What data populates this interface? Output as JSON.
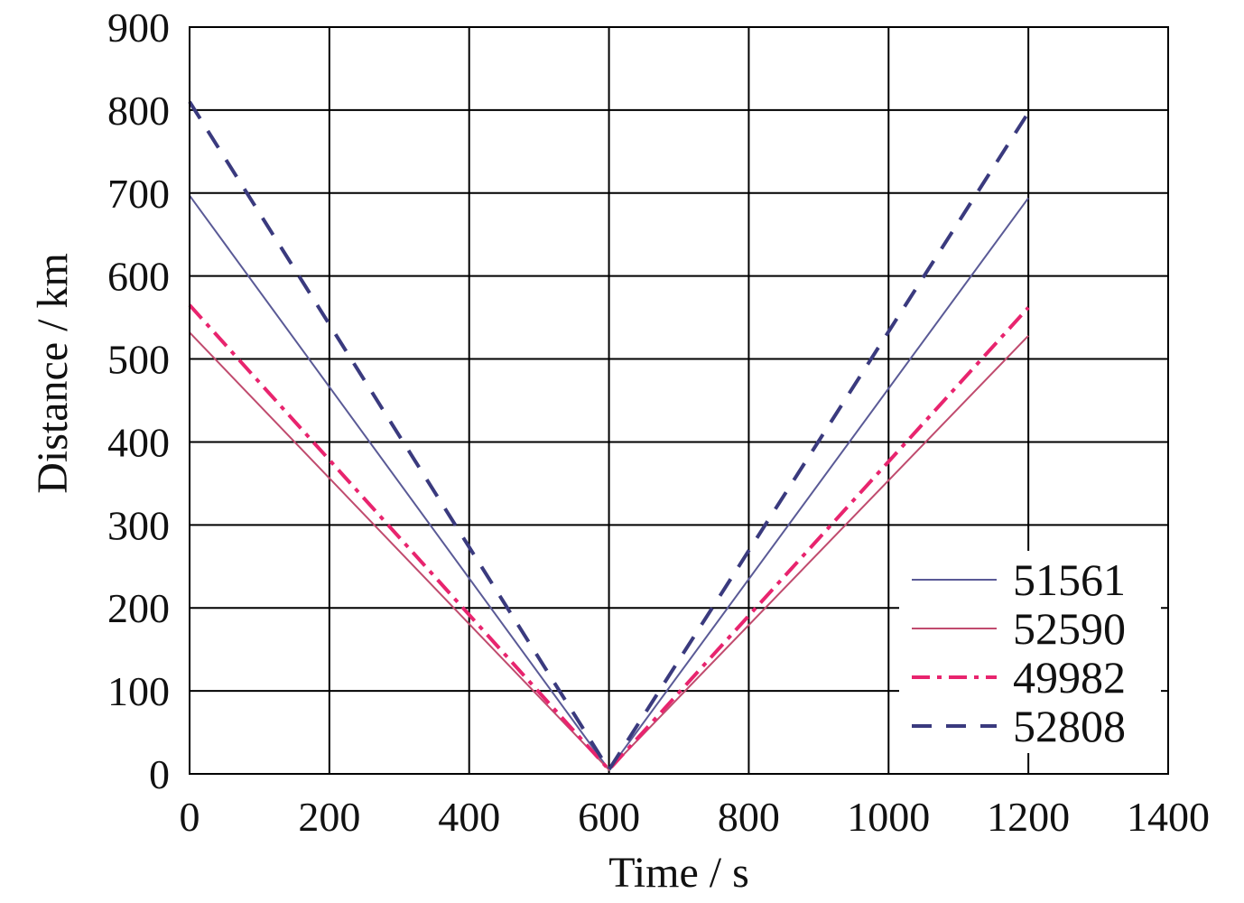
{
  "chart_data": {
    "type": "line",
    "title": "",
    "xlabel": "Time / s",
    "ylabel": "Distance / km",
    "xlim": [
      0,
      1400
    ],
    "ylim": [
      0,
      900
    ],
    "xticks": [
      0,
      200,
      400,
      600,
      800,
      1000,
      1200,
      1400
    ],
    "yticks": [
      0,
      100,
      200,
      300,
      400,
      500,
      600,
      700,
      800,
      900
    ],
    "grid": true,
    "legend_position": "bottom-right",
    "series": [
      {
        "name": "51561",
        "color": "#5a5a96",
        "style": "solid",
        "x": [
          0,
          600,
          1200
        ],
        "y": [
          697,
          5,
          694
        ]
      },
      {
        "name": "52590",
        "color": "#c04b6e",
        "style": "solid",
        "x": [
          0,
          600,
          1200
        ],
        "y": [
          532,
          5,
          528
        ]
      },
      {
        "name": "49982",
        "color": "#e8246e",
        "style": "dashdot",
        "x": [
          0,
          600,
          1200
        ],
        "y": [
          565,
          5,
          562
        ]
      },
      {
        "name": "52808",
        "color": "#3a3a7e",
        "style": "dashed",
        "x": [
          0,
          600,
          1200
        ],
        "y": [
          810,
          5,
          797
        ]
      }
    ]
  }
}
